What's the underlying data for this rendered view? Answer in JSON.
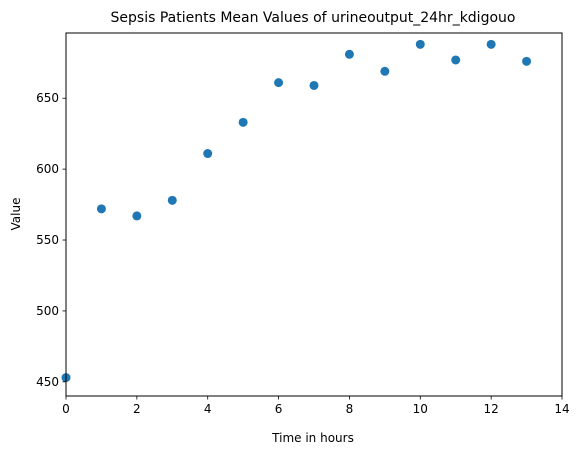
{
  "chart_data": {
    "type": "scatter",
    "title": "Sepsis Patients Mean Values of urineoutput_24hr_kdigouo",
    "xlabel": "Time in hours",
    "ylabel": "Value",
    "xlim": [
      0,
      14
    ],
    "ylim": [
      440,
      696
    ],
    "xticks": [
      0,
      2,
      4,
      6,
      8,
      10,
      12,
      14
    ],
    "yticks": [
      450,
      500,
      550,
      600,
      650
    ],
    "grid": false,
    "point_color": "#1f77b4",
    "series": [
      {
        "x": [
          0,
          1,
          2,
          3,
          4,
          5,
          6,
          7,
          8,
          9,
          10,
          11,
          12,
          13
        ],
        "y": [
          453,
          572,
          567,
          578,
          611,
          633,
          661,
          659,
          681,
          669,
          688,
          677,
          688,
          676
        ]
      }
    ]
  }
}
